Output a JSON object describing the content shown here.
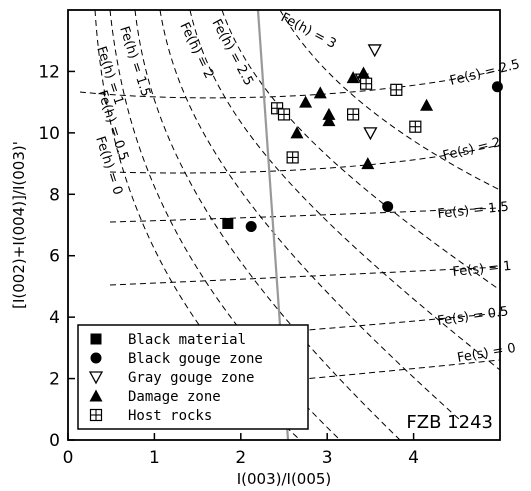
{
  "chart_data": {
    "type": "scatter",
    "title": "",
    "xlabel": "I(003)/I(005)",
    "ylabel": "[I(002)+I(004)]/I(003)'",
    "xlim": [
      0,
      5
    ],
    "ylim": [
      0,
      14
    ],
    "xticks": [
      "0",
      "1",
      "2",
      "3",
      "4"
    ],
    "yticks": [
      "0",
      "2",
      "4",
      "6",
      "8",
      "10",
      "12"
    ],
    "annotation": "FZB 1243",
    "legend_position": "bottom-left",
    "series": [
      {
        "name": "Black material",
        "marker": "filled-square",
        "points": [
          [
            1.85,
            7.05
          ]
        ]
      },
      {
        "name": "Black gouge zone",
        "marker": "filled-circle",
        "points": [
          [
            2.12,
            6.95
          ],
          [
            3.7,
            7.6
          ],
          [
            4.97,
            11.5
          ]
        ]
      },
      {
        "name": "Gray gouge zone",
        "marker": "open-triangle-down",
        "points": [
          [
            3.55,
            12.7
          ],
          [
            3.4,
            11.75
          ],
          [
            3.5,
            10.0
          ]
        ]
      },
      {
        "name": "Damage zone",
        "marker": "filled-triangle-up",
        "points": [
          [
            2.65,
            10.0
          ],
          [
            2.75,
            11.0
          ],
          [
            2.92,
            11.3
          ],
          [
            3.02,
            10.6
          ],
          [
            3.02,
            10.4
          ],
          [
            3.3,
            11.8
          ],
          [
            3.42,
            11.95
          ],
          [
            3.47,
            9.0
          ],
          [
            4.15,
            10.9
          ]
        ]
      },
      {
        "name": "Host rocks",
        "marker": "crossed-square",
        "points": [
          [
            2.42,
            10.8
          ],
          [
            2.5,
            10.6
          ],
          [
            2.6,
            9.2
          ],
          [
            3.3,
            10.6
          ],
          [
            3.45,
            11.6
          ],
          [
            3.8,
            11.4
          ],
          [
            4.02,
            10.2
          ]
        ]
      }
    ],
    "reference_curves": {
      "fe_h_labels": [
        "Fe(h) = 0",
        "Fe(h) = 0.5",
        "Fe(h) = 1",
        "Fe(h) = 1.5",
        "Fe(h) = 2",
        "Fe(h) = 2.5",
        "Fe(h) = 3"
      ],
      "fe_s_labels": [
        "Fe(s) = 0",
        "Fe(s) = 0.5",
        "Fe(s) = 1",
        "Fe(s) = 1.5",
        "Fe(s) = 2",
        "Fe(s) = 2.5"
      ]
    },
    "grid": false
  }
}
